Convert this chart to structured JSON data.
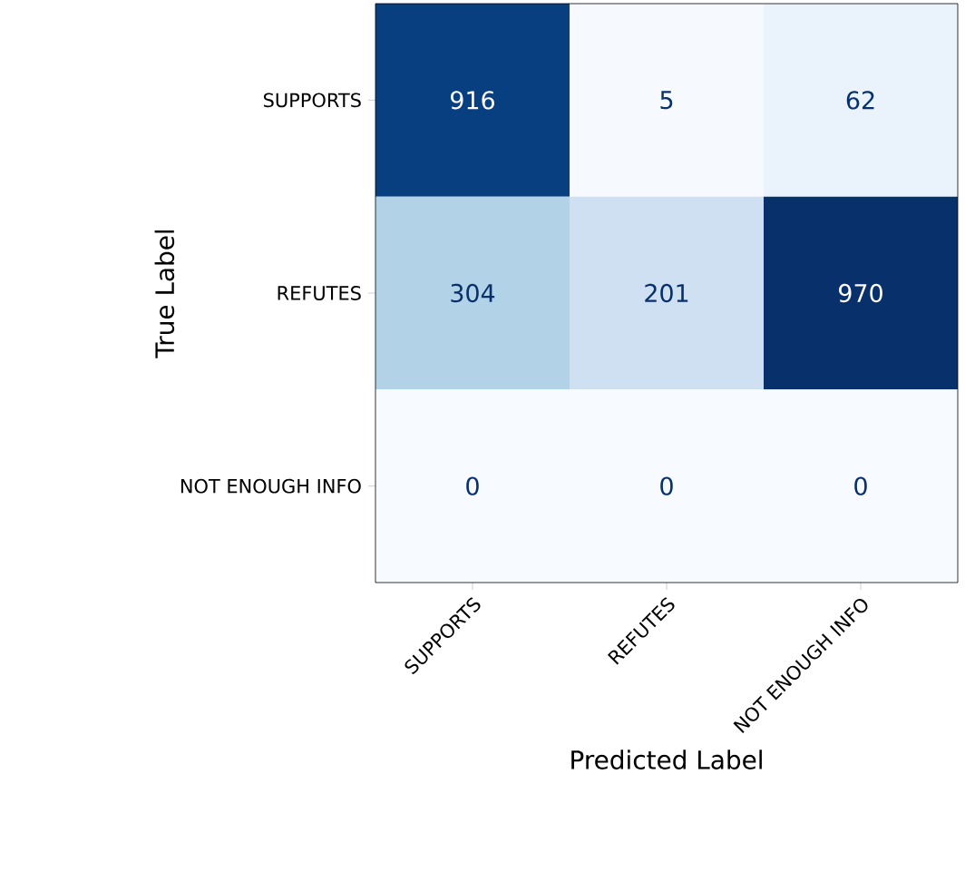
{
  "chart_data": {
    "type": "heatmap",
    "xlabel": "Predicted Label",
    "ylabel": "True Label",
    "categories": [
      "SUPPORTS",
      "REFUTES",
      "NOT ENOUGH INFO"
    ],
    "y_categories": [
      "SUPPORTS",
      "REFUTES",
      "NOT ENOUGH INFO"
    ],
    "data_labels": true,
    "cells": [
      [
        916,
        5,
        62
      ],
      [
        304,
        201,
        970
      ],
      [
        0,
        0,
        0
      ]
    ]
  }
}
